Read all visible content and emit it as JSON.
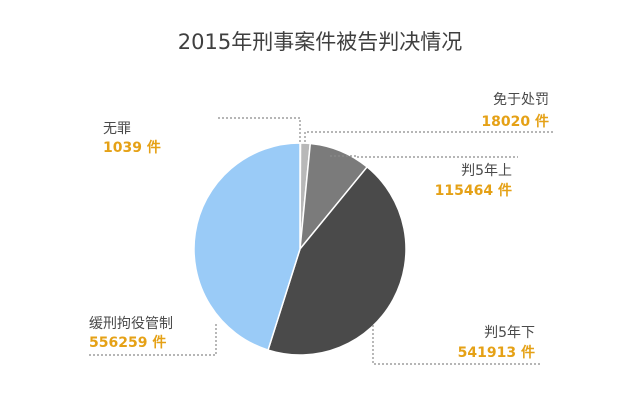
{
  "chart_data": {
    "type": "pie",
    "title": "2015年刑事案件被告判决情况",
    "slices": [
      {
        "label": "无罪",
        "value": 1039,
        "value_text": "1039 件",
        "color": "#dcdcdc"
      },
      {
        "label": "免于处罚",
        "value": 18020,
        "value_text": "18020 件",
        "color": "#b8b8b8"
      },
      {
        "label": "判5年上",
        "value": 115464,
        "value_text": "115464 件",
        "color": "#7b7b7b"
      },
      {
        "label": "判5年下",
        "value": 541913,
        "value_text": "541913 件",
        "color": "#4a4a4a"
      },
      {
        "label": "缓刑拘役管制",
        "value": 556259,
        "value_text": "556259 件",
        "color": "#9acbf7"
      }
    ],
    "legend": "none",
    "colors": {
      "value_text": "#e5a116",
      "label_text": "#4a4a4a",
      "leader_line": "#8a8a8a",
      "title_text": "#3f3f3f"
    }
  }
}
